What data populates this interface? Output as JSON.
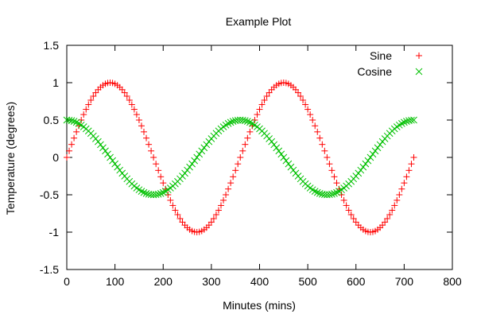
{
  "chart_data": {
    "type": "scatter",
    "title": "Example Plot",
    "xlabel": "Minutes (mins)",
    "ylabel": "Temperature (degrees)",
    "xlim": [
      0,
      800
    ],
    "ylim": [
      -1.5,
      1.5
    ],
    "xticks": [
      0,
      100,
      200,
      300,
      400,
      500,
      600,
      700,
      800
    ],
    "yticks": [
      -1.5,
      -1,
      -0.5,
      0,
      0.5,
      1,
      1.5
    ],
    "xtick_labels": [
      "0",
      "100",
      "200",
      "300",
      "400",
      "500",
      "600",
      "700",
      "800"
    ],
    "ytick_labels": [
      "-1.5",
      "-1",
      "-0.5",
      "0",
      "0.5",
      "1",
      "1.5"
    ],
    "grid": false,
    "legend_position": "top-right",
    "series": [
      {
        "name": "Sine",
        "marker": "plus",
        "color": "#ff0000",
        "x_start": 0,
        "x_end": 720,
        "x_step": 5,
        "amplitude": 1,
        "function": "sin",
        "period": 360
      },
      {
        "name": "Cosine",
        "marker": "cross",
        "color": "#00c000",
        "x_start": 0,
        "x_end": 720,
        "x_step": 5,
        "amplitude": 0.5,
        "function": "cos",
        "period": 360
      }
    ]
  }
}
